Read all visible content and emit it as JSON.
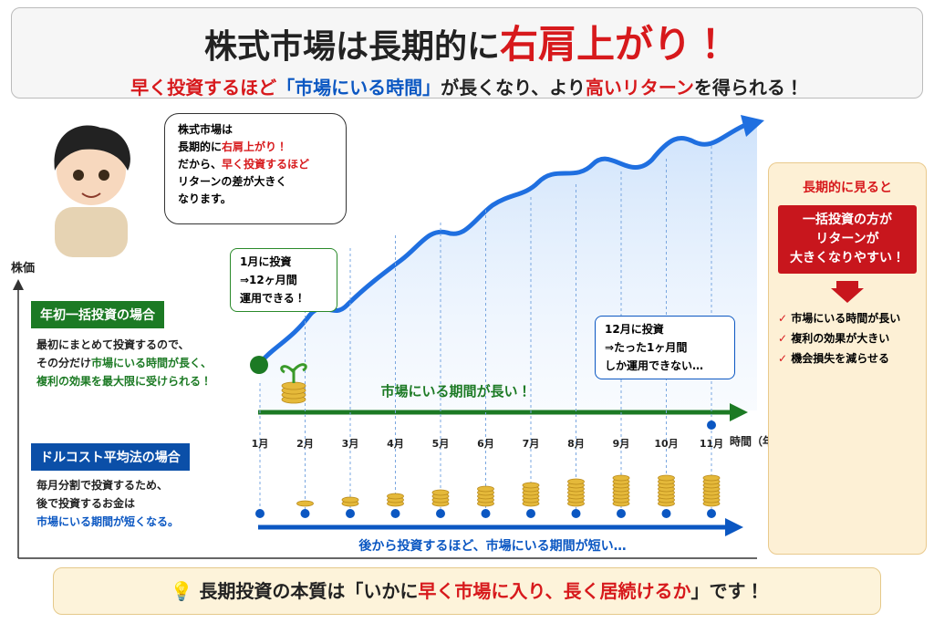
{
  "header": {
    "title": [
      "株式市場は長期的に",
      "右肩上がり！"
    ],
    "subtitle": [
      "早く投資するほど",
      "「市場にいる時間」",
      "が長くなり、より",
      "高いリターン",
      "を得られる！"
    ]
  },
  "speech": {
    "lines": [
      [
        "株式市場は"
      ],
      [
        "長期的に",
        "右肩上がり！"
      ],
      [
        "だから、",
        "早く投資するほど"
      ],
      [
        "リターンの差が大きく"
      ],
      [
        "なります。"
      ]
    ]
  },
  "chart": {
    "y_label": "株価",
    "x_label": "時間（年）",
    "months": [
      "1月",
      "2月",
      "3月",
      "4月",
      "5月",
      "6月",
      "7月",
      "8月",
      "9月",
      "10月",
      "11月"
    ],
    "callout_start": [
      "1月に投資",
      "⇒12ヶ月間",
      "運用できる！"
    ],
    "callout_end": [
      "12月に投資",
      "⇒たった1ヶ月間",
      "しか運用できない…"
    ],
    "long_label": "市場にいる期間が長い！",
    "short_label": "後から投資するほど、市場にいる期間が短い…"
  },
  "lump_sum": {
    "label": "年初一括投資の場合",
    "lines": [
      [
        "最初にまとめて投資するので、"
      ],
      [
        "その分だけ",
        "市場にいる時間が長く、"
      ],
      [
        "複利の効果を最大限に受けられる！"
      ]
    ]
  },
  "dca": {
    "label": "ドルコスト平均法の場合",
    "lines": [
      [
        "毎月分割で投資するため、"
      ],
      [
        "後で投資するお金は"
      ],
      [
        "市場にいる期間が短くなる。"
      ]
    ]
  },
  "side": {
    "heading": "長期的に見ると",
    "box": [
      "一括投資の方が",
      "リターンが",
      "大きくなりやすい！"
    ],
    "checks": [
      "市場にいる時間が長い",
      "複利の効果が大きい",
      "機会損失を減らせる"
    ]
  },
  "footer": [
    "長期投資の本質は「いかに",
    "早く市場に入り、長く居続けるか",
    "」です！"
  ]
}
